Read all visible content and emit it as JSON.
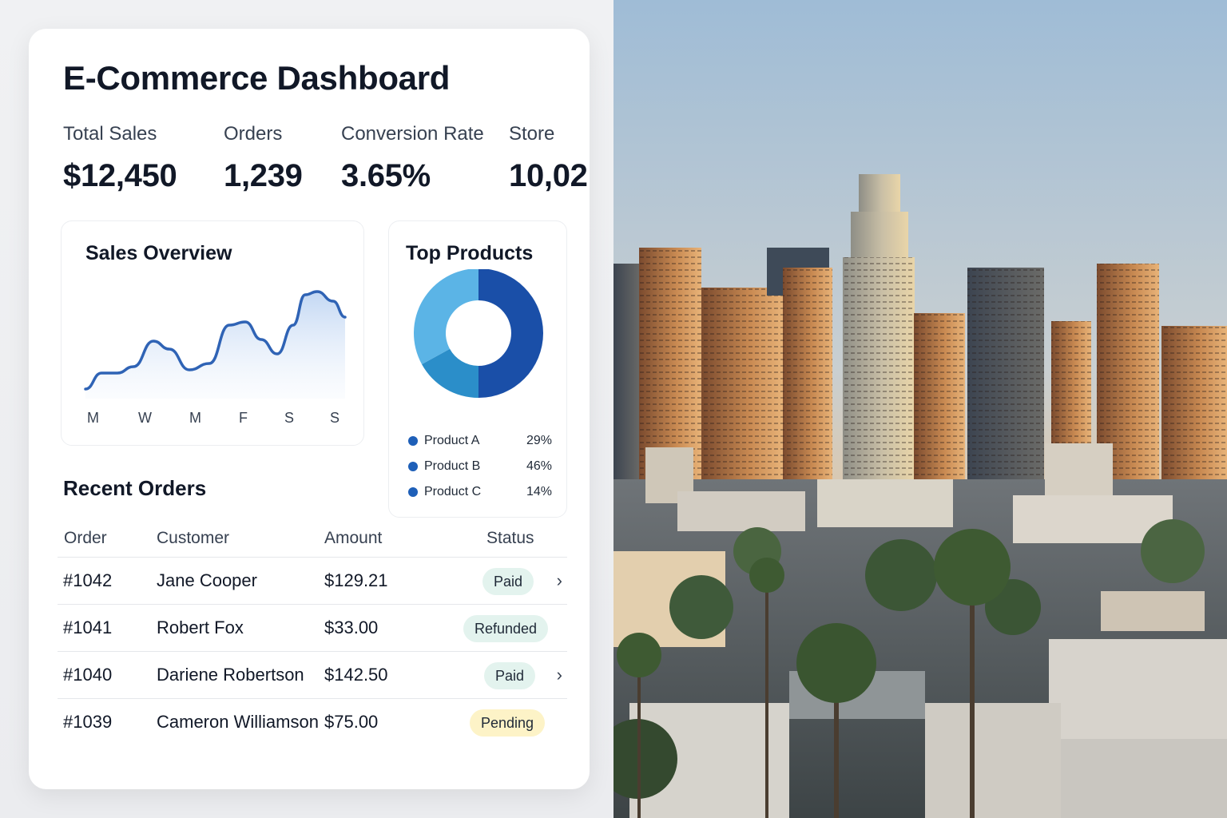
{
  "dashboard": {
    "title": "E-Commerce Dashboard",
    "stats": [
      {
        "label": "Total Sales",
        "value": "$12,450"
      },
      {
        "label": "Orders",
        "value": "1,239"
      },
      {
        "label": "Conversion Rate",
        "value": "3.65%"
      },
      {
        "label": "Store",
        "value": "10,02"
      }
    ],
    "sales_overview": {
      "title": "Sales Overview",
      "x_labels": [
        "M",
        "W",
        "M",
        "F",
        "S",
        "S"
      ]
    },
    "top_products": {
      "title": "Top Products",
      "items": [
        {
          "name": "Product A",
          "pct": "29%",
          "color": "#1e5fb8"
        },
        {
          "name": "Product B",
          "pct": "46%",
          "color": "#1e5fb8"
        },
        {
          "name": "Product C",
          "pct": "14%",
          "color": "#1e5fb8"
        }
      ],
      "donut_segments": [
        {
          "value": 50,
          "color": "#1a4fa8"
        },
        {
          "value": 17,
          "color": "#2b8ec9"
        },
        {
          "value": 33,
          "color": "#5bb4e6"
        }
      ]
    },
    "recent_orders": {
      "title": "Recent Orders",
      "columns": [
        "Order",
        "Customer",
        "Amount",
        "Status"
      ],
      "rows": [
        {
          "order": "#1042",
          "customer": "Jane Cooper",
          "amount": "$129.21",
          "status": "Paid",
          "chevron": "›"
        },
        {
          "order": "#1041",
          "customer": "Robert Fox",
          "amount": "$33.00",
          "status": "Refunded",
          "chevron": ""
        },
        {
          "order": "#1040",
          "customer": "Dariene Robertson",
          "amount": "$142.50",
          "status": "Paid",
          "chevron": "›"
        },
        {
          "order": "#1039",
          "customer": "Cameron Williamson",
          "amount": "$75.00",
          "status": "Pending",
          "chevron": ""
        }
      ]
    }
  },
  "chart_data": [
    {
      "type": "area",
      "title": "Sales Overview",
      "categories": [
        "M",
        "W",
        "M",
        "F",
        "S",
        "S"
      ],
      "values": [
        10,
        45,
        25,
        65,
        40,
        100
      ],
      "xlabel": "",
      "ylabel": "",
      "grid": false
    },
    {
      "type": "pie",
      "title": "Top Products",
      "categories": [
        "Product A",
        "Product B",
        "Product C"
      ],
      "values": [
        29,
        46,
        14
      ]
    }
  ],
  "photo": {
    "subject": "city-skyline-sunset-photo"
  }
}
